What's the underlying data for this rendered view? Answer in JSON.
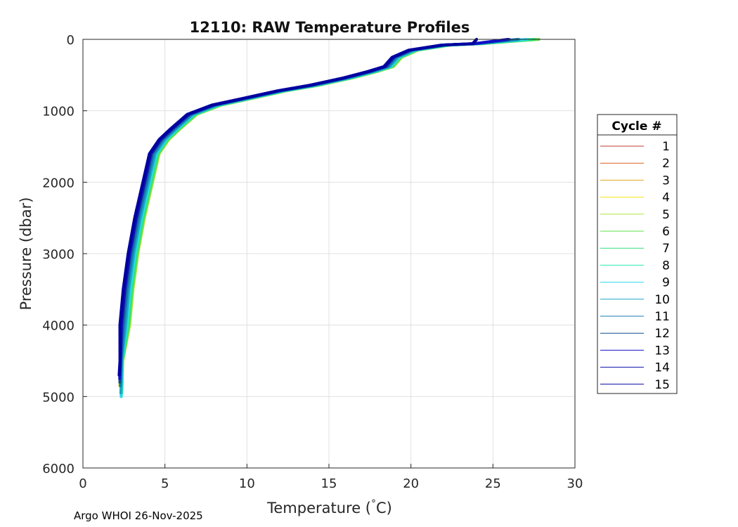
{
  "chart_data": {
    "type": "line",
    "title": "12110: RAW Temperature Profiles",
    "xlabel": "Temperature (",
    "xlabel_degree": "°",
    "xlabel_unit": "C)",
    "ylabel": "Pressure (dbar)",
    "xlim": [
      0,
      30
    ],
    "ylim": [
      0,
      6000
    ],
    "y_reversed": true,
    "grid": true,
    "xticks": [
      0,
      5,
      10,
      15,
      20,
      25,
      30
    ],
    "yticks": [
      0,
      1000,
      2000,
      3000,
      4000,
      5000,
      6000
    ],
    "legend": {
      "title": "Cycle #",
      "position": "right"
    },
    "footer": "Argo WHOI 26-Nov-2025",
    "base_profile": [
      {
        "t": 24.0,
        "p": 0
      },
      {
        "t": 23.9,
        "p": 60
      },
      {
        "t": 22.0,
        "p": 80
      },
      {
        "t": 20.0,
        "p": 150
      },
      {
        "t": 19.0,
        "p": 250
      },
      {
        "t": 18.5,
        "p": 380
      },
      {
        "t": 17.5,
        "p": 450
      },
      {
        "t": 16.0,
        "p": 540
      },
      {
        "t": 14.0,
        "p": 640
      },
      {
        "t": 12.0,
        "p": 720
      },
      {
        "t": 10.0,
        "p": 820
      },
      {
        "t": 8.0,
        "p": 920
      },
      {
        "t": 6.5,
        "p": 1050
      },
      {
        "t": 5.5,
        "p": 1250
      },
      {
        "t": 4.8,
        "p": 1400
      },
      {
        "t": 4.2,
        "p": 1600
      },
      {
        "t": 3.8,
        "p": 2000
      },
      {
        "t": 3.3,
        "p": 2500
      },
      {
        "t": 2.9,
        "p": 3000
      },
      {
        "t": 2.6,
        "p": 3500
      },
      {
        "t": 2.4,
        "p": 4000
      },
      {
        "t": 2.3,
        "p": 4500
      },
      {
        "t": 2.25,
        "p": 4850
      }
    ],
    "series": [
      {
        "name": "1",
        "color": "#c0392b",
        "surface_t": 24.0,
        "offset": 0.0,
        "max_p": 4850
      },
      {
        "name": "2",
        "color": "#d9601f",
        "surface_t": 24.0,
        "offset": 0.0,
        "max_p": 4850
      },
      {
        "name": "3",
        "color": "#e0a81a",
        "surface_t": 24.0,
        "offset": 0.0,
        "max_p": 4850
      },
      {
        "name": "4",
        "color": "#f2e318",
        "surface_t": 24.0,
        "offset": 0.0,
        "max_p": 4850
      },
      {
        "name": "5",
        "color": "#aee23a",
        "surface_t": 27.6,
        "offset": 0.45,
        "max_p": 4900
      },
      {
        "name": "6",
        "color": "#5fe04a",
        "surface_t": 27.8,
        "offset": 0.4,
        "max_p": 4950
      },
      {
        "name": "7",
        "color": "#2fe07a",
        "surface_t": 27.5,
        "offset": 0.35,
        "max_p": 4900
      },
      {
        "name": "8",
        "color": "#25e8b0",
        "surface_t": 27.2,
        "offset": 0.3,
        "max_p": 5000
      },
      {
        "name": "9",
        "color": "#2ad8ee",
        "surface_t": 27.0,
        "offset": 0.25,
        "max_p": 5000
      },
      {
        "name": "10",
        "color": "#1aa6c8",
        "surface_t": 26.6,
        "offset": 0.2,
        "max_p": 4950
      },
      {
        "name": "11",
        "color": "#137ab0",
        "surface_t": 26.5,
        "offset": 0.1,
        "max_p": 4850
      },
      {
        "name": "12",
        "color": "#0b4f8c",
        "surface_t": 26.0,
        "offset": 0.0,
        "max_p": 4800
      },
      {
        "name": "13",
        "color": "#1010c8",
        "surface_t": 25.9,
        "offset": -0.05,
        "max_p": 4750
      },
      {
        "name": "14",
        "color": "#0a0aa8",
        "surface_t": 24.0,
        "offset": -0.1,
        "max_p": 4700
      },
      {
        "name": "15",
        "color": "#0000a0",
        "surface_t": 24.0,
        "offset": -0.15,
        "max_p": 4700
      }
    ]
  }
}
